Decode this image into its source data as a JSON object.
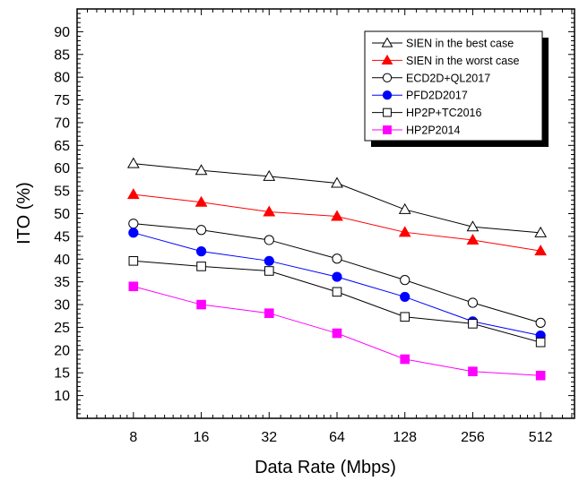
{
  "chart_data": {
    "type": "line",
    "title": "",
    "xlabel": "Data Rate (Mbps)",
    "ylabel": "ITO (%)",
    "x": [
      8,
      16,
      32,
      64,
      128,
      256,
      512
    ],
    "x_tick_labels": [
      "8",
      "16",
      "32",
      "64",
      "128",
      "256",
      "512"
    ],
    "x_scale": "log2",
    "xlim": [
      4.5,
      724
    ],
    "ylim": [
      5,
      95
    ],
    "y_ticks": [
      10,
      15,
      20,
      25,
      30,
      35,
      40,
      45,
      50,
      55,
      60,
      65,
      70,
      75,
      80,
      85,
      90
    ],
    "y_tick_labels": [
      "10",
      "15",
      "20",
      "25",
      "30",
      "35",
      "40",
      "45",
      "50",
      "55",
      "60",
      "65",
      "70",
      "75",
      "80",
      "85",
      "90"
    ],
    "grid": false,
    "legend_position": "top-right",
    "series": [
      {
        "name": "SIEN in the best case",
        "color": "#000000",
        "marker": "triangle-open",
        "values": [
          61,
          59.5,
          58.2,
          56.7,
          50.9,
          47.1,
          45.8
        ]
      },
      {
        "name": "SIEN in the worst case",
        "color": "#ff0000",
        "marker": "triangle-filled",
        "values": [
          54.2,
          52.5,
          50.4,
          49.4,
          45.9,
          44.2,
          41.8
        ]
      },
      {
        "name": "ECD2D+QL2017",
        "color": "#000000",
        "marker": "circle-open",
        "values": [
          47.8,
          46.4,
          44.2,
          40.1,
          35.4,
          30.4,
          26
        ]
      },
      {
        "name": "PFD2D2017",
        "color": "#0000ff",
        "marker": "circle-filled",
        "values": [
          45.8,
          41.7,
          39.6,
          36.1,
          31.7,
          26.3,
          23.2
        ]
      },
      {
        "name": "HP2P+TC2016",
        "color": "#000000",
        "marker": "square-open",
        "values": [
          39.6,
          38.4,
          37.4,
          32.8,
          27.3,
          25.8,
          21.7
        ]
      },
      {
        "name": "HP2P2014",
        "color": "#ff00ff",
        "marker": "square-filled",
        "values": [
          34,
          30,
          28.1,
          23.7,
          18,
          15.3,
          14.4
        ]
      }
    ]
  }
}
